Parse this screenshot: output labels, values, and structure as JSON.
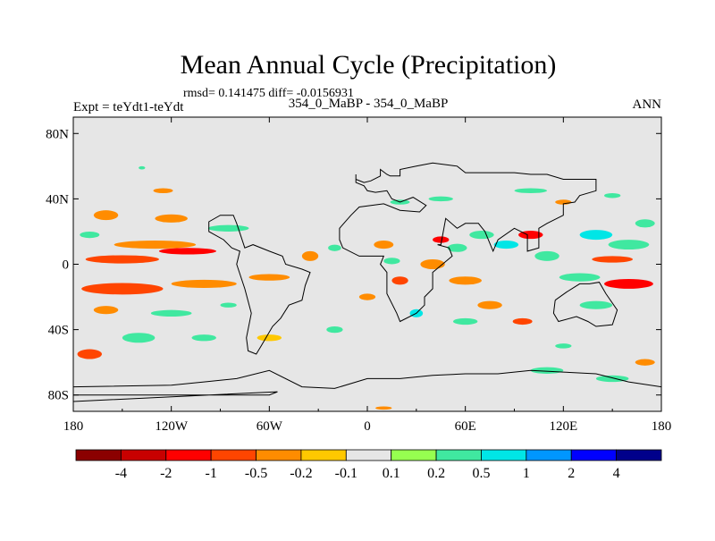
{
  "header": {
    "title": "Mean Annual Cycle (Precipitation)",
    "stats": "rmsd= 0.141475 diff= -0.0156931",
    "subtitle": "354_0_MaBP - 354_0_MaBP",
    "left_label": "Expt = teYdt1-teYdt",
    "right_label": "ANN"
  },
  "chart_data": {
    "type": "heatmap",
    "title": "Mean Annual Cycle (Precipitation)",
    "xlabel": "",
    "ylabel": "",
    "xlim": [
      -180,
      180
    ],
    "ylim": [
      -90,
      90
    ],
    "x_ticks": [
      {
        "value": -180,
        "label": "180"
      },
      {
        "value": -120,
        "label": "120W"
      },
      {
        "value": -60,
        "label": "60W"
      },
      {
        "value": 0,
        "label": "0"
      },
      {
        "value": 60,
        "label": "60E"
      },
      {
        "value": 120,
        "label": "120E"
      },
      {
        "value": 180,
        "label": "180"
      }
    ],
    "y_ticks": [
      {
        "value": 80,
        "label": "80N"
      },
      {
        "value": 40,
        "label": "40N"
      },
      {
        "value": 0,
        "label": "0"
      },
      {
        "value": -40,
        "label": "40S"
      },
      {
        "value": -80,
        "label": "80S"
      }
    ],
    "colorbar": {
      "labels": [
        "-4",
        "-2",
        "-1",
        "-0.5",
        "-0.2",
        "-0.1",
        "0.1",
        "0.2",
        "0.5",
        "1",
        "2",
        "4"
      ],
      "colors": [
        "#8b0000",
        "#c80000",
        "#ff0000",
        "#ff4500",
        "#ff8c00",
        "#ffc800",
        "#e6e6e6",
        "#96ff50",
        "#40e8a0",
        "#00e6e6",
        "#0096ff",
        "#0000ff",
        "#00008b"
      ]
    },
    "background_color": "#e6e6e6",
    "anomalies": [
      {
        "lon": -150,
        "lat": 3,
        "w": 45,
        "h": 5,
        "level": "-0.5"
      },
      {
        "lon": -110,
        "lat": 8,
        "w": 35,
        "h": 4,
        "level": "-1"
      },
      {
        "lon": -130,
        "lat": 12,
        "w": 50,
        "h": 5,
        "level": "-0.2"
      },
      {
        "lon": -160,
        "lat": 30,
        "w": 15,
        "h": 6,
        "level": "-0.2"
      },
      {
        "lon": -120,
        "lat": 28,
        "w": 20,
        "h": 5,
        "level": "-0.2"
      },
      {
        "lon": -85,
        "lat": 22,
        "w": 25,
        "h": 4,
        "level": "0.2"
      },
      {
        "lon": -170,
        "lat": 18,
        "w": 12,
        "h": 4,
        "level": "0.2"
      },
      {
        "lon": -150,
        "lat": -15,
        "w": 50,
        "h": 7,
        "level": "-0.5"
      },
      {
        "lon": -100,
        "lat": -12,
        "w": 40,
        "h": 5,
        "level": "-0.2"
      },
      {
        "lon": -60,
        "lat": -8,
        "w": 25,
        "h": 4,
        "level": "-0.2"
      },
      {
        "lon": -160,
        "lat": -28,
        "w": 15,
        "h": 5,
        "level": "-0.2"
      },
      {
        "lon": -120,
        "lat": -30,
        "w": 25,
        "h": 4,
        "level": "0.2"
      },
      {
        "lon": -140,
        "lat": -45,
        "w": 20,
        "h": 6,
        "level": "0.2"
      },
      {
        "lon": -170,
        "lat": -55,
        "w": 15,
        "h": 6,
        "level": "-0.5"
      },
      {
        "lon": -100,
        "lat": -45,
        "w": 15,
        "h": 4,
        "level": "0.2"
      },
      {
        "lon": -60,
        "lat": -45,
        "w": 15,
        "h": 4,
        "level": "-0.1"
      },
      {
        "lon": -138,
        "lat": 59,
        "w": 4,
        "h": 2,
        "level": "0.2"
      },
      {
        "lon": -125,
        "lat": 45,
        "w": 12,
        "h": 3,
        "level": "-0.2"
      },
      {
        "lon": -35,
        "lat": 5,
        "w": 10,
        "h": 6,
        "level": "-0.2"
      },
      {
        "lon": -20,
        "lat": 10,
        "w": 8,
        "h": 4,
        "level": "0.2"
      },
      {
        "lon": 10,
        "lat": 12,
        "w": 12,
        "h": 5,
        "level": "-0.2"
      },
      {
        "lon": 15,
        "lat": 2,
        "w": 10,
        "h": 4,
        "level": "0.2"
      },
      {
        "lon": 20,
        "lat": -10,
        "w": 10,
        "h": 5,
        "level": "-0.5"
      },
      {
        "lon": 30,
        "lat": -30,
        "w": 8,
        "h": 5,
        "level": "0.5"
      },
      {
        "lon": 40,
        "lat": 0,
        "w": 15,
        "h": 6,
        "level": "-0.2"
      },
      {
        "lon": 45,
        "lat": 15,
        "w": 10,
        "h": 4,
        "level": "-1"
      },
      {
        "lon": 55,
        "lat": 10,
        "w": 12,
        "h": 5,
        "level": "0.2"
      },
      {
        "lon": 70,
        "lat": 18,
        "w": 15,
        "h": 5,
        "level": "0.2"
      },
      {
        "lon": 85,
        "lat": 12,
        "w": 15,
        "h": 5,
        "level": "0.5"
      },
      {
        "lon": 100,
        "lat": 18,
        "w": 15,
        "h": 5,
        "level": "-1"
      },
      {
        "lon": 110,
        "lat": 5,
        "w": 15,
        "h": 6,
        "level": "0.2"
      },
      {
        "lon": 140,
        "lat": 18,
        "w": 20,
        "h": 6,
        "level": "0.5"
      },
      {
        "lon": 160,
        "lat": 12,
        "w": 25,
        "h": 6,
        "level": "0.2"
      },
      {
        "lon": 150,
        "lat": 3,
        "w": 25,
        "h": 4,
        "level": "-0.5"
      },
      {
        "lon": 130,
        "lat": -8,
        "w": 25,
        "h": 5,
        "level": "0.2"
      },
      {
        "lon": 160,
        "lat": -12,
        "w": 30,
        "h": 6,
        "level": "-1"
      },
      {
        "lon": 140,
        "lat": -25,
        "w": 20,
        "h": 5,
        "level": "0.2"
      },
      {
        "lon": 60,
        "lat": -10,
        "w": 20,
        "h": 5,
        "level": "-0.2"
      },
      {
        "lon": 75,
        "lat": -25,
        "w": 15,
        "h": 5,
        "level": "-0.2"
      },
      {
        "lon": 60,
        "lat": -35,
        "w": 15,
        "h": 4,
        "level": "0.2"
      },
      {
        "lon": 45,
        "lat": 40,
        "w": 15,
        "h": 3,
        "level": "0.2"
      },
      {
        "lon": 20,
        "lat": 38,
        "w": 12,
        "h": 3,
        "level": "0.2"
      },
      {
        "lon": 100,
        "lat": 45,
        "w": 20,
        "h": 3,
        "level": "0.2"
      },
      {
        "lon": 120,
        "lat": 38,
        "w": 10,
        "h": 3,
        "level": "-0.2"
      },
      {
        "lon": 150,
        "lat": 42,
        "w": 10,
        "h": 3,
        "level": "0.2"
      },
      {
        "lon": 170,
        "lat": 25,
        "w": 12,
        "h": 5,
        "level": "0.2"
      },
      {
        "lon": 110,
        "lat": -65,
        "w": 20,
        "h": 4,
        "level": "0.2"
      },
      {
        "lon": 150,
        "lat": -70,
        "w": 20,
        "h": 4,
        "level": "0.2"
      },
      {
        "lon": 170,
        "lat": -60,
        "w": 12,
        "h": 4,
        "level": "-0.2"
      },
      {
        "lon": 10,
        "lat": -88,
        "w": 10,
        "h": 2,
        "level": "-0.2"
      },
      {
        "lon": -20,
        "lat": -40,
        "w": 10,
        "h": 4,
        "level": "0.2"
      },
      {
        "lon": 0,
        "lat": -20,
        "w": 10,
        "h": 4,
        "level": "-0.2"
      },
      {
        "lon": 95,
        "lat": -35,
        "w": 12,
        "h": 4,
        "level": "-0.5"
      },
      {
        "lon": 120,
        "lat": -50,
        "w": 10,
        "h": 3,
        "level": "0.2"
      },
      {
        "lon": -85,
        "lat": -25,
        "w": 10,
        "h": 3,
        "level": "0.2"
      }
    ],
    "coastlines": [
      [
        [
          -7,
          55
        ],
        [
          -7,
          52
        ],
        [
          -2,
          50
        ],
        [
          2,
          51
        ],
        [
          8,
          54
        ],
        [
          8,
          58
        ],
        [
          12,
          55
        ],
        [
          14,
          54
        ],
        [
          20,
          54
        ],
        [
          20,
          58
        ],
        [
          30,
          60
        ],
        [
          40,
          62
        ],
        [
          55,
          60
        ],
        [
          60,
          56
        ],
        [
          70,
          56
        ],
        [
          80,
          56
        ],
        [
          90,
          56
        ],
        [
          100,
          55
        ],
        [
          110,
          55
        ],
        [
          120,
          52
        ],
        [
          140,
          52
        ],
        [
          140,
          45
        ],
        [
          130,
          42
        ],
        [
          127,
          38
        ],
        [
          120,
          37
        ],
        [
          120,
          30
        ],
        [
          110,
          25
        ],
        [
          105,
          22
        ],
        [
          105,
          10
        ],
        [
          98,
          8
        ],
        [
          98,
          18
        ],
        [
          90,
          22
        ],
        [
          80,
          15
        ],
        [
          77,
          8
        ],
        [
          72,
          20
        ],
        [
          68,
          25
        ],
        [
          60,
          25
        ],
        [
          55,
          22
        ],
        [
          48,
          28
        ],
        [
          45,
          12
        ],
        [
          43,
          12
        ],
        [
          50,
          10
        ],
        [
          52,
          5
        ],
        [
          40,
          -5
        ],
        [
          40,
          -15
        ],
        [
          35,
          -20
        ],
        [
          35,
          -25
        ],
        [
          30,
          -30
        ],
        [
          20,
          -35
        ],
        [
          18,
          -30
        ],
        [
          12,
          -18
        ],
        [
          12,
          -5
        ],
        [
          8,
          0
        ],
        [
          10,
          5
        ],
        [
          5,
          5
        ],
        [
          -5,
          5
        ],
        [
          -15,
          10
        ],
        [
          -17,
          15
        ],
        [
          -17,
          22
        ],
        [
          -10,
          30
        ],
        [
          -5,
          35
        ],
        [
          10,
          37
        ],
        [
          20,
          33
        ],
        [
          32,
          32
        ],
        [
          36,
          36
        ],
        [
          28,
          41
        ],
        [
          20,
          38
        ],
        [
          15,
          40
        ],
        [
          12,
          45
        ],
        [
          5,
          44
        ],
        [
          0,
          45
        ],
        [
          -2,
          48
        ],
        [
          -7,
          50
        ],
        [
          -7,
          55
        ]
      ],
      [
        [
          -80,
          25
        ],
        [
          -82,
          30
        ],
        [
          -90,
          30
        ],
        [
          -97,
          26
        ],
        [
          -97,
          20
        ],
        [
          -88,
          15
        ],
        [
          -83,
          10
        ],
        [
          -78,
          8
        ],
        [
          -80,
          0
        ],
        [
          -75,
          -15
        ],
        [
          -71,
          -30
        ],
        [
          -74,
          -45
        ],
        [
          -73,
          -53
        ],
        [
          -68,
          -55
        ],
        [
          -65,
          -50
        ],
        [
          -58,
          -38
        ],
        [
          -53,
          -33
        ],
        [
          -48,
          -25
        ],
        [
          -40,
          -22
        ],
        [
          -38,
          -13
        ],
        [
          -35,
          -5
        ],
        [
          -40,
          -3
        ],
        [
          -50,
          0
        ],
        [
          -52,
          5
        ],
        [
          -60,
          8
        ],
        [
          -70,
          12
        ],
        [
          -75,
          10
        ],
        [
          -80,
          25
        ]
      ],
      [
        [
          -180,
          -75
        ],
        [
          -120,
          -74
        ],
        [
          -100,
          -72
        ],
        [
          -80,
          -70
        ],
        [
          -60,
          -65
        ],
        [
          -40,
          -75
        ],
        [
          -20,
          -76
        ],
        [
          0,
          -70
        ],
        [
          20,
          -70
        ],
        [
          40,
          -68
        ],
        [
          60,
          -67
        ],
        [
          80,
          -67
        ],
        [
          100,
          -65
        ],
        [
          120,
          -66
        ],
        [
          140,
          -67
        ],
        [
          160,
          -72
        ],
        [
          180,
          -75
        ]
      ],
      [
        [
          115,
          -22
        ],
        [
          114,
          -30
        ],
        [
          117,
          -35
        ],
        [
          128,
          -32
        ],
        [
          135,
          -35
        ],
        [
          140,
          -38
        ],
        [
          150,
          -37
        ],
        [
          153,
          -28
        ],
        [
          146,
          -18
        ],
        [
          142,
          -11
        ],
        [
          136,
          -12
        ],
        [
          130,
          -12
        ],
        [
          122,
          -17
        ],
        [
          115,
          -22
        ]
      ],
      [
        [
          -55,
          -78
        ],
        [
          -180,
          -84
        ],
        [
          -180,
          -80
        ],
        [
          -60,
          -80
        ],
        [
          -55,
          -78
        ]
      ]
    ]
  }
}
